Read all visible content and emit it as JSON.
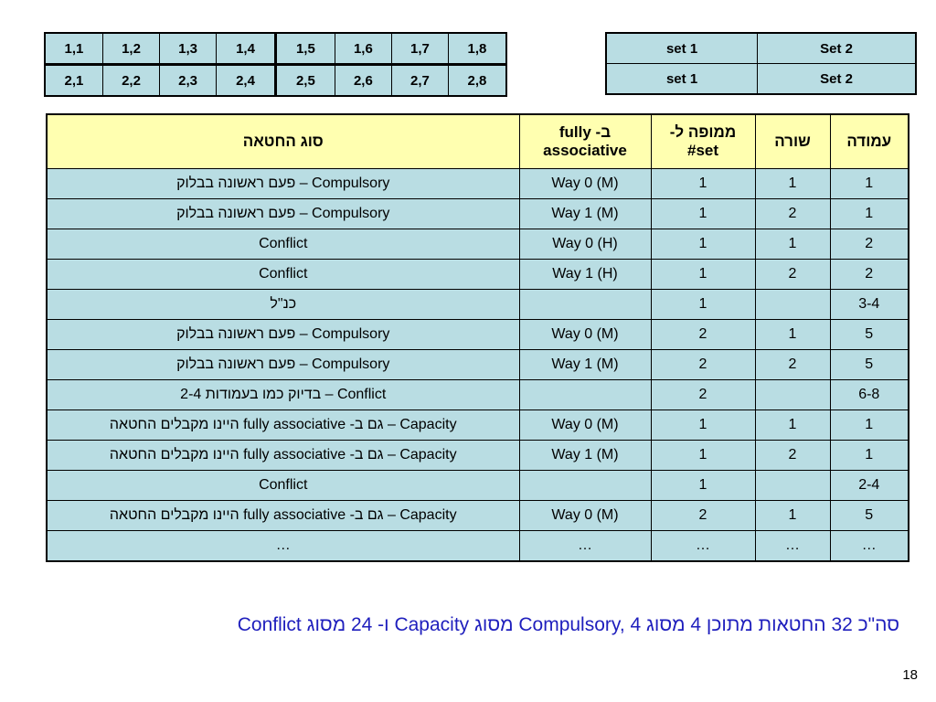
{
  "grid": {
    "rows": [
      [
        "1,1",
        "1,2",
        "1,3",
        "1,4",
        "1,5",
        "1,6",
        "1,7",
        "1,8"
      ],
      [
        "2,1",
        "2,2",
        "2,3",
        "2,4",
        "2,5",
        "2,6",
        "2,7",
        "2,8"
      ]
    ]
  },
  "sets": {
    "rows": [
      [
        "set 1",
        "Set 2"
      ],
      [
        "set 1",
        "Set 2"
      ]
    ]
  },
  "main": {
    "headers": {
      "column": "עמודה",
      "row": "שורה",
      "mapped_set": "ממופה ל- set#",
      "fully_assoc": "ב- fully associative",
      "miss_type": "סוג החטאה"
    },
    "rows": [
      {
        "column": "1",
        "row": "1",
        "set": "1",
        "fa": "Way 0 (M)",
        "type": "Compulsory – פעם ראשונה בבלוק"
      },
      {
        "column": "1",
        "row": "2",
        "set": "1",
        "fa": "Way 1 (M)",
        "type": "Compulsory – פעם ראשונה בבלוק"
      },
      {
        "column": "2",
        "row": "1",
        "set": "1",
        "fa": "Way 0 (H)",
        "type": "Conflict"
      },
      {
        "column": "2",
        "row": "2",
        "set": "1",
        "fa": "Way 1 (H)",
        "type": "Conflict"
      },
      {
        "column": "3-4",
        "row": "",
        "set": "1",
        "fa": "",
        "type": "כנ\"ל"
      },
      {
        "column": "5",
        "row": "1",
        "set": "2",
        "fa": "Way 0 (M)",
        "type": "Compulsory – פעם ראשונה בבלוק"
      },
      {
        "column": "5",
        "row": "2",
        "set": "2",
        "fa": "Way 1 (M)",
        "type": "Compulsory – פעם ראשונה בבלוק"
      },
      {
        "column": "6-8",
        "row": "",
        "set": "2",
        "fa": "",
        "type": "Conflict – בדיוק כמו בעמודות 2-4"
      },
      {
        "column": "1",
        "row": "1",
        "set": "1",
        "fa": "Way 0 (M)",
        "type": "Capacity – גם ב- fully associative היינו מקבלים החטאה"
      },
      {
        "column": "1",
        "row": "2",
        "set": "1",
        "fa": "Way 1 (M)",
        "type": "Capacity – גם ב- fully associative היינו מקבלים החטאה"
      },
      {
        "column": "2-4",
        "row": "",
        "set": "1",
        "fa": "",
        "type": "Conflict"
      },
      {
        "column": "5",
        "row": "1",
        "set": "2",
        "fa": "Way 0 (M)",
        "type": "Capacity – גם ב- fully associative היינו מקבלים החטאה"
      },
      {
        "column": "…",
        "row": "…",
        "set": "…",
        "fa": "…",
        "type": "…"
      }
    ]
  },
  "summary": "סה\"כ 32 החטאות מתוכן 4 מסוג Compulsory, 4 מסוג Capacity ו- 24 מסוג Conflict",
  "page_number": "18"
}
